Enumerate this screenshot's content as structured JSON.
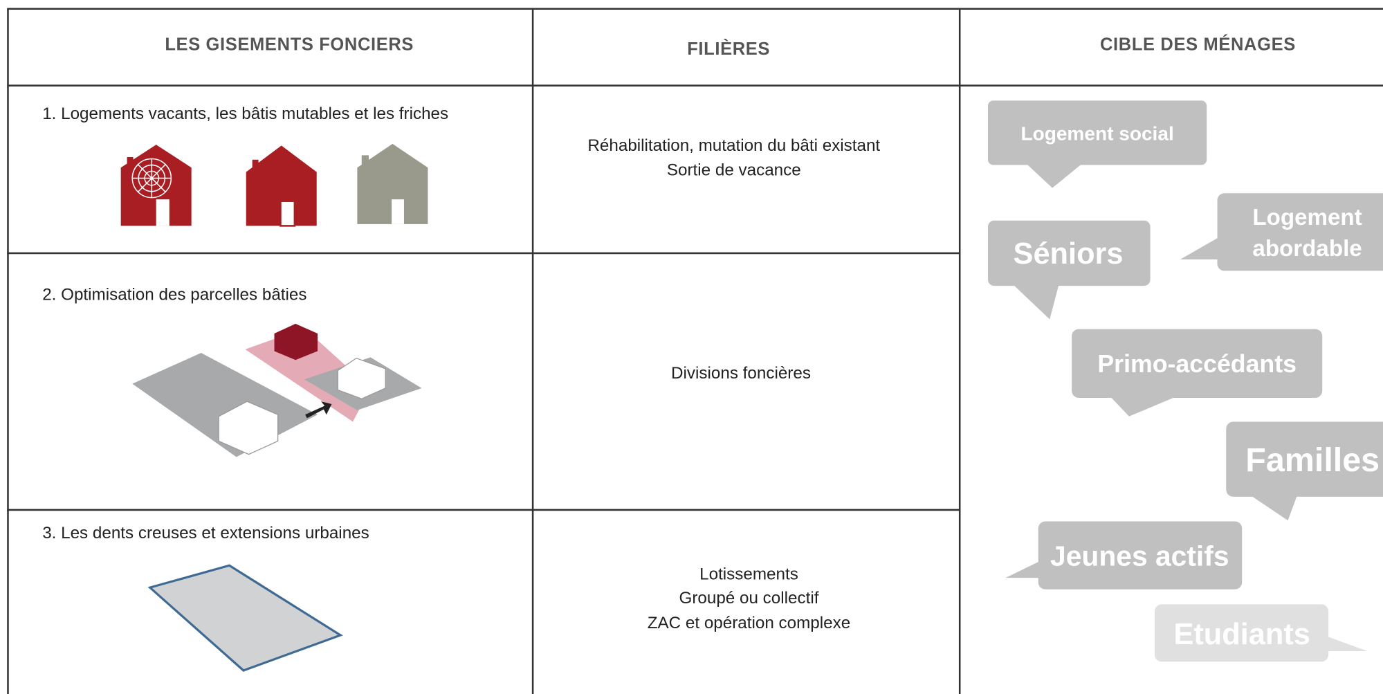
{
  "header": {
    "columns": [
      "LES GISEMENTS FONCIERS",
      "FILIÈRES",
      "CIBLE DES MÉNAGES"
    ]
  },
  "rows": [
    {
      "label": "1. Logements vacants, les bâtis mutables et les friches",
      "filieres": [
        "Réhabilitation, mutation du bâti existant",
        "Sortie de vacance"
      ]
    },
    {
      "label": "2. Optimisation des parcelles bâties",
      "filieres": [
        "Divisions foncières"
      ]
    },
    {
      "label": "3. Les dents creuses et extensions urbaines",
      "filieres": [
        "Lotissements",
        "Groupé ou collectif",
        "ZAC et opération complexe"
      ]
    }
  ],
  "targets": [
    {
      "lines": [
        "Logement social"
      ]
    },
    {
      "lines": [
        "Séniors"
      ]
    },
    {
      "lines": [
        "Logement",
        "abordable"
      ]
    },
    {
      "lines": [
        "Primo-accédants"
      ]
    },
    {
      "lines": [
        "Familles"
      ]
    },
    {
      "lines": [
        "Jeunes actifs"
      ]
    },
    {
      "lines": [
        "Etudiants"
      ]
    }
  ]
}
